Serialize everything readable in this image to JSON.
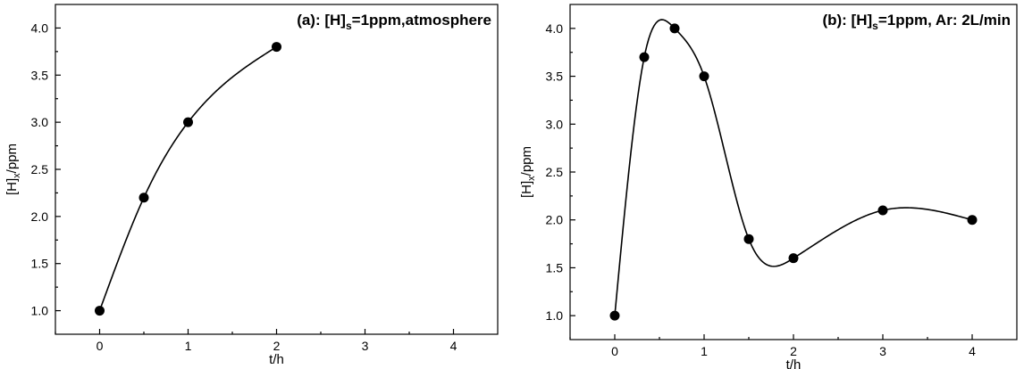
{
  "chart_data": [
    {
      "type": "scatter",
      "title_parts": {
        "prefix": "(a): [H]",
        "sub": "s",
        "suffix": "=1ppm,atmosphere"
      },
      "xlabel": "t/h",
      "ylabel_parts": {
        "base": "[H]",
        "sub": "x",
        "suffix": "/ppm"
      },
      "xlim": [
        -0.5,
        4.5
      ],
      "ylim": [
        0.75,
        4.25
      ],
      "xticks": [
        0,
        1,
        2,
        3,
        4
      ],
      "yticks": [
        1.0,
        1.5,
        2.0,
        2.5,
        3.0,
        3.5,
        4.0
      ],
      "xtick_labels": [
        "0",
        "1",
        "2",
        "3",
        "4"
      ],
      "ytick_labels": [
        "1.0",
        "1.5",
        "2.0",
        "2.5",
        "3.0",
        "3.5",
        "4.0"
      ],
      "series": [
        {
          "x": [
            0,
            0.5,
            1,
            2
          ],
          "y": [
            1.0,
            2.2,
            3.0,
            3.8
          ],
          "smooth_line": true
        }
      ],
      "grid": false
    },
    {
      "type": "scatter",
      "title_parts": {
        "prefix": "(b): [H]",
        "sub": "s",
        "suffix": "=1ppm, Ar: 2L/min"
      },
      "xlabel": "t/h",
      "ylabel_parts": {
        "base": "[H]",
        "sub": "x",
        "suffix": "/ppm"
      },
      "xlim": [
        -0.5,
        4.5
      ],
      "ylim": [
        0.75,
        4.25
      ],
      "xticks": [
        0,
        1,
        2,
        3,
        4
      ],
      "yticks": [
        1.0,
        1.5,
        2.0,
        2.5,
        3.0,
        3.5,
        4.0
      ],
      "xtick_labels": [
        "0",
        "1",
        "2",
        "3",
        "4"
      ],
      "ytick_labels": [
        "1.0",
        "1.5",
        "2.0",
        "2.5",
        "3.0",
        "3.5",
        "4.0"
      ],
      "series": [
        {
          "x": [
            0,
            0.33,
            0.67,
            1,
            1.5,
            2,
            3,
            4
          ],
          "y": [
            1.0,
            3.7,
            4.0,
            3.5,
            1.8,
            1.6,
            2.1,
            2.0
          ],
          "smooth_line": true
        }
      ],
      "grid": false
    }
  ]
}
